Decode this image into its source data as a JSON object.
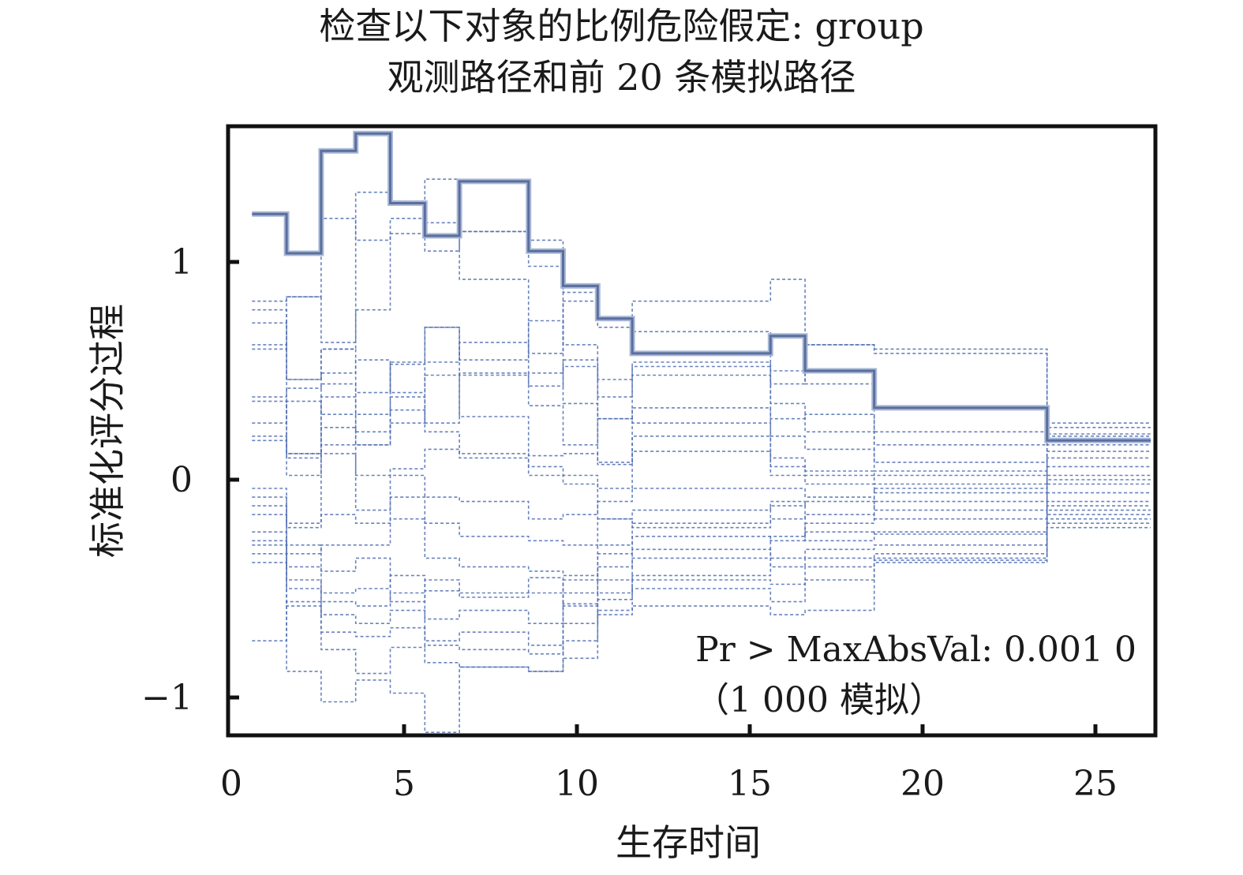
{
  "chart_data": {
    "type": "line",
    "title": "检查以下对象的比例危险假定: group",
    "subtitle": "观测路径和前 20 条模拟路径",
    "xlabel": "生存时间",
    "ylabel": "标准化评分过程",
    "xlim": [
      0,
      27
    ],
    "ylim": [
      -1.2,
      1.6
    ],
    "xticks": [
      0,
      5,
      10,
      15,
      20,
      25
    ],
    "yticks": [
      -1,
      0,
      1
    ],
    "ytick_labels": [
      "−1",
      "0",
      "1"
    ],
    "grid": false,
    "annotation": {
      "line1": "Pr > MaxAbsVal: 0.001 0",
      "line2": "（1 000 模拟）"
    },
    "step_x": [
      0.6,
      1.6,
      2.6,
      3.6,
      4.6,
      5.6,
      6.6,
      8.6,
      9.6,
      10.6,
      11.6,
      15.6,
      16.6,
      18.6,
      23.6,
      26.6
    ],
    "series": [
      {
        "role": "observed",
        "values": [
          1.22,
          1.04,
          1.51,
          1.59,
          1.27,
          1.12,
          1.37,
          1.05,
          0.89,
          0.74,
          0.58,
          0.66,
          0.5,
          0.33,
          0.18
        ]
      },
      {
        "role": "simulated",
        "values": [
          0.82,
          0.84,
          1.2,
          1.1,
          1.2,
          1.18,
          0.92,
          0.58,
          0.82,
          0.74,
          0.82,
          0.92,
          0.62,
          0.58,
          0.24
        ]
      },
      {
        "role": "simulated",
        "values": [
          0.6,
          0.84,
          0.63,
          1.32,
          1.28,
          1.38,
          1.14,
          1.1,
          0.86,
          0.7,
          0.68,
          0.44,
          0.62,
          0.6,
          0.2
        ]
      },
      {
        "role": "simulated",
        "values": [
          0.78,
          0.46,
          0.6,
          0.78,
          1.13,
          1.05,
          1.14,
          0.98,
          0.62,
          0.38,
          0.54,
          0.5,
          0.44,
          0.08,
          0.26
        ]
      },
      {
        "role": "simulated",
        "values": [
          0.72,
          0.46,
          0.49,
          0.55,
          0.4,
          0.54,
          0.63,
          0.49,
          0.55,
          0.28,
          0.52,
          0.35,
          0.22,
          0.16,
          0.21
        ]
      },
      {
        "role": "simulated",
        "values": [
          0.38,
          0.42,
          0.44,
          0.4,
          0.53,
          0.7,
          0.55,
          0.73,
          0.35,
          0.07,
          0.33,
          0.2,
          0.14,
          0.04,
          0.16
        ]
      },
      {
        "role": "simulated",
        "values": [
          0.36,
          0.12,
          0.38,
          0.3,
          0.38,
          0.26,
          0.49,
          0.34,
          0.16,
          0.28,
          0.26,
          0.1,
          0.04,
          0.02,
          0.13
        ]
      },
      {
        "role": "simulated",
        "values": [
          0.2,
          0.12,
          0.24,
          0.16,
          0.26,
          0.48,
          0.29,
          0.11,
          0.12,
          0.08,
          0.2,
          0.06,
          0.02,
          -0.02,
          0.1
        ]
      },
      {
        "role": "simulated",
        "values": [
          0.18,
          0.02,
          0.16,
          0.02,
          0.05,
          0.14,
          0.1,
          0.02,
          0.02,
          -0.04,
          0.13,
          0.02,
          -0.02,
          -0.06,
          0.06
        ]
      },
      {
        "role": "simulated",
        "values": [
          -0.04,
          -0.2,
          0.12,
          -0.14,
          0.02,
          -0.08,
          -0.1,
          -0.18,
          -0.16,
          -0.1,
          -0.04,
          -0.04,
          -0.08,
          -0.1,
          0.02
        ]
      },
      {
        "role": "simulated",
        "values": [
          -0.08,
          -0.22,
          -0.16,
          -0.2,
          -0.08,
          -0.2,
          -0.26,
          -0.28,
          -0.3,
          -0.18,
          -0.14,
          -0.12,
          -0.1,
          -0.14,
          -0.02
        ]
      },
      {
        "role": "simulated",
        "values": [
          -0.16,
          -0.34,
          -0.3,
          -0.3,
          -0.18,
          -0.36,
          -0.4,
          -0.42,
          -0.44,
          -0.3,
          -0.2,
          -0.18,
          -0.16,
          -0.18,
          -0.06
        ]
      },
      {
        "role": "simulated",
        "values": [
          -0.24,
          -0.4,
          -0.52,
          -0.5,
          -0.44,
          -0.51,
          -0.52,
          -0.52,
          -0.46,
          -0.34,
          -0.26,
          -0.28,
          -0.24,
          -0.25,
          -0.1
        ]
      },
      {
        "role": "simulated",
        "values": [
          -0.3,
          -0.46,
          -0.56,
          -0.58,
          -0.52,
          -0.64,
          -0.6,
          -0.66,
          -0.52,
          -0.4,
          -0.32,
          -0.36,
          -0.32,
          -0.3,
          -0.14
        ]
      },
      {
        "role": "simulated",
        "values": [
          -0.34,
          -0.5,
          -0.62,
          -0.66,
          -0.6,
          -0.74,
          -0.7,
          -0.76,
          -0.57,
          -0.46,
          -0.36,
          -0.4,
          -0.36,
          -0.34,
          -0.18
        ]
      },
      {
        "role": "simulated",
        "values": [
          -0.38,
          -0.58,
          -0.7,
          -0.72,
          -0.68,
          -0.84,
          -0.86,
          -0.88,
          -0.66,
          -0.52,
          -0.46,
          -0.48,
          -0.4,
          -0.37,
          -0.22
        ]
      },
      {
        "role": "simulated",
        "values": [
          -0.74,
          -0.56,
          -0.78,
          -0.89,
          -0.77,
          -0.76,
          -0.78,
          -0.8,
          -0.74,
          -0.55,
          -0.5,
          -0.56,
          -0.46,
          -0.38,
          -0.2
        ]
      },
      {
        "role": "simulated",
        "values": [
          -0.28,
          -0.88,
          -1.02,
          -0.92,
          -0.98,
          -1.16,
          -0.86,
          -0.88,
          -0.82,
          -0.6,
          -0.58,
          -0.62,
          -0.6,
          -0.36,
          -0.12
        ]
      },
      {
        "role": "simulated",
        "values": [
          0.62,
          0.1,
          0.6,
          0.22,
          0.54,
          0.7,
          0.48,
          0.43,
          0.52,
          0.46,
          0.48,
          0.28,
          0.3,
          0.22,
          0.18
        ]
      },
      {
        "role": "simulated",
        "values": [
          -0.12,
          -0.3,
          -0.42,
          -0.36,
          -0.56,
          -0.46,
          -0.54,
          -0.45,
          -0.58,
          -0.62,
          -0.44,
          -0.26,
          -0.2,
          -0.04,
          0.0
        ]
      },
      {
        "role": "simulated",
        "values": [
          0.26,
          0.36,
          0.3,
          0.16,
          0.32,
          0.22,
          0.12,
          0.06,
          -0.02,
          -0.18,
          -0.22,
          -0.1,
          -0.28,
          -0.24,
          -0.16
        ]
      }
    ]
  }
}
